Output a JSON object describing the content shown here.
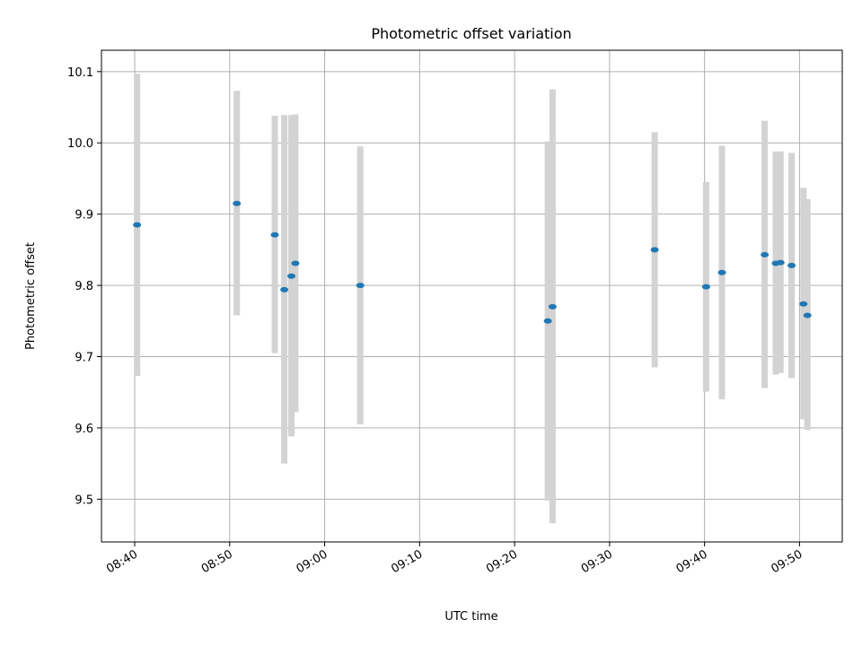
{
  "chart_data": {
    "type": "scatter",
    "title": "Photometric offset variation",
    "xlabel": "UTC time",
    "ylabel": "Photometric offset",
    "x_tick_labels": [
      "08:40",
      "08:50",
      "09:00",
      "09:10",
      "09:20",
      "09:30",
      "09:40",
      "09:50"
    ],
    "y_tick_labels": [
      "9.5",
      "9.6",
      "9.7",
      "9.8",
      "9.9",
      "10.0",
      "10.1"
    ],
    "xlim": [
      "08:36:30",
      "09:54:30"
    ],
    "ylim": [
      9.44,
      10.13
    ],
    "grid": true,
    "colors": {
      "point": "#1f77b4",
      "errorbar": "#d3d3d3",
      "grid": "#b0b0b0"
    },
    "series": [
      {
        "points": [
          {
            "x": "08:40:15",
            "y": 9.885,
            "yerr_low": 9.673,
            "yerr_high": 10.097
          },
          {
            "x": "08:50:45",
            "y": 9.915,
            "yerr_low": 9.758,
            "yerr_high": 10.073
          },
          {
            "x": "08:54:45",
            "y": 9.871,
            "yerr_low": 9.705,
            "yerr_high": 10.038
          },
          {
            "x": "08:55:45",
            "y": 9.794,
            "yerr_low": 9.55,
            "yerr_high": 10.039
          },
          {
            "x": "08:56:30",
            "y": 9.813,
            "yerr_low": 9.588,
            "yerr_high": 10.039
          },
          {
            "x": "08:56:55",
            "y": 9.831,
            "yerr_low": 9.622,
            "yerr_high": 10.04
          },
          {
            "x": "09:03:45",
            "y": 9.8,
            "yerr_low": 9.605,
            "yerr_high": 9.995
          },
          {
            "x": "09:23:30",
            "y": 9.75,
            "yerr_low": 9.498,
            "yerr_high": 10.002
          },
          {
            "x": "09:24:00",
            "y": 9.77,
            "yerr_low": 9.466,
            "yerr_high": 10.075
          },
          {
            "x": "09:34:45",
            "y": 9.85,
            "yerr_low": 9.685,
            "yerr_high": 10.015
          },
          {
            "x": "09:40:10",
            "y": 9.798,
            "yerr_low": 9.651,
            "yerr_high": 9.945
          },
          {
            "x": "09:41:50",
            "y": 9.818,
            "yerr_low": 9.64,
            "yerr_high": 9.996
          },
          {
            "x": "09:46:20",
            "y": 9.843,
            "yerr_low": 9.656,
            "yerr_high": 10.031
          },
          {
            "x": "09:47:30",
            "y": 9.831,
            "yerr_low": 9.675,
            "yerr_high": 9.988
          },
          {
            "x": "09:48:00",
            "y": 9.832,
            "yerr_low": 9.677,
            "yerr_high": 9.988
          },
          {
            "x": "09:49:10",
            "y": 9.828,
            "yerr_low": 9.67,
            "yerr_high": 9.986
          },
          {
            "x": "09:50:25",
            "y": 9.774,
            "yerr_low": 9.612,
            "yerr_high": 9.937
          },
          {
            "x": "09:50:50",
            "y": 9.758,
            "yerr_low": 9.597,
            "yerr_high": 9.921
          }
        ]
      }
    ]
  }
}
